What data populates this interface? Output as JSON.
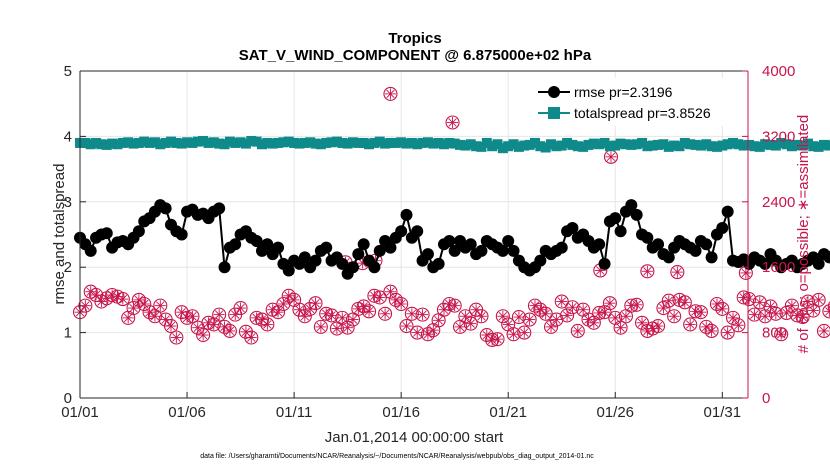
{
  "chart_data": {
    "type": "line",
    "title": "Tropics",
    "subtitle": "SAT_V_WIND_COMPONENT @ 6.875000e+02 hPa",
    "xlabel": "Jan.01,2014 00:00:00 start",
    "ylabel": "rmse and totalspread",
    "y2label": "# of obs: o=possible; ∗=assimilated",
    "xlim": [
      0,
      31.2
    ],
    "ylim": [
      0,
      5
    ],
    "y2lim": [
      0,
      4000
    ],
    "xticks": [
      0,
      5,
      10,
      15,
      20,
      25,
      30
    ],
    "xticklabels": [
      "01/01",
      "01/06",
      "01/11",
      "01/16",
      "01/21",
      "01/26",
      "01/31"
    ],
    "yticks": [
      "0",
      "1",
      "2",
      "3",
      "4",
      "5"
    ],
    "y2ticks": [
      "0",
      "800",
      "1600",
      "2400",
      "3200",
      "4000"
    ],
    "legend_position": "top-right",
    "step_days": 0.25,
    "series": [
      {
        "name": "rmse pr=2.3196",
        "axis": "left",
        "color": "#000000",
        "marker": "circle",
        "values": [
          2.45,
          2.35,
          2.25,
          2.45,
          2.5,
          2.52,
          2.3,
          2.38,
          2.4,
          2.35,
          2.45,
          2.55,
          2.7,
          2.75,
          2.85,
          2.95,
          2.9,
          2.65,
          2.55,
          2.5,
          2.85,
          2.88,
          2.8,
          2.82,
          2.75,
          2.85,
          2.9,
          2.0,
          2.3,
          2.35,
          2.5,
          2.55,
          2.45,
          2.4,
          2.25,
          2.35,
          2.2,
          2.3,
          2.05,
          1.95,
          2.1,
          2.05,
          2.15,
          2.0,
          2.1,
          2.25,
          2.3,
          2.1,
          2.15,
          2.05,
          1.9,
          2.0,
          2.2,
          2.35,
          2.1,
          2.0,
          2.25,
          2.4,
          2.3,
          2.45,
          2.55,
          2.8,
          2.45,
          2.55,
          2.1,
          2.2,
          2.0,
          2.05,
          2.35,
          2.4,
          2.25,
          2.4,
          2.3,
          2.35,
          2.2,
          2.25,
          2.4,
          2.35,
          2.3,
          2.25,
          2.4,
          2.25,
          2.1,
          2.0,
          1.95,
          2.0,
          2.1,
          2.25,
          2.2,
          2.25,
          2.3,
          2.55,
          2.6,
          2.45,
          2.5,
          2.4,
          2.3,
          2.35,
          2.05,
          2.7,
          2.75,
          2.55,
          2.85,
          2.95,
          2.8,
          2.5,
          2.45,
          2.3,
          2.35,
          2.2,
          2.15,
          2.3,
          2.4,
          2.35,
          2.3,
          2.25,
          2.4,
          2.35,
          2.15,
          2.5,
          2.6,
          2.85,
          2.1,
          2.08,
          2.12,
          2.05,
          2.15,
          2.1,
          2.05,
          2.2,
          2.1,
          2.0,
          2.05,
          2.1,
          2.0,
          2.05,
          2.1,
          2.15,
          2.05,
          2.2,
          2.15,
          2.2,
          2.25,
          2.25,
          2.28,
          2.3,
          2.2,
          2.1,
          2.2,
          2.4,
          2.35,
          2.3,
          2.2,
          2.1,
          2.1,
          2.2,
          2.15,
          1.95
        ]
      },
      {
        "name": "totalspread pr=3.8526",
        "axis": "left",
        "color": "#0f8a8a",
        "marker": "square",
        "values": [
          3.9,
          3.9,
          3.88,
          3.9,
          3.88,
          3.87,
          3.89,
          3.88,
          3.9,
          3.91,
          3.89,
          3.9,
          3.92,
          3.9,
          3.91,
          3.88,
          3.9,
          3.92,
          3.9,
          3.89,
          3.91,
          3.9,
          3.92,
          3.93,
          3.9,
          3.91,
          3.89,
          3.88,
          3.92,
          3.9,
          3.91,
          3.89,
          3.93,
          3.92,
          3.88,
          3.9,
          3.89,
          3.9,
          3.91,
          3.92,
          3.9,
          3.89,
          3.9,
          3.91,
          3.89,
          3.88,
          3.9,
          3.91,
          3.92,
          3.9,
          3.89,
          3.91,
          3.9,
          3.9,
          3.88,
          3.9,
          3.92,
          3.89,
          3.9,
          3.9,
          3.91,
          3.89,
          3.9,
          3.88,
          3.9,
          3.91,
          3.89,
          3.9,
          3.88,
          3.9,
          3.89,
          3.87,
          3.86,
          3.88,
          3.85,
          3.84,
          3.9,
          3.85,
          3.88,
          3.82,
          3.85,
          3.88,
          3.84,
          3.86,
          3.87,
          3.9,
          3.85,
          3.83,
          3.88,
          3.85,
          3.86,
          3.9,
          3.87,
          3.85,
          3.84,
          3.87,
          3.89,
          3.88,
          3.9,
          3.85,
          3.86,
          3.89,
          3.88,
          3.87,
          3.88,
          3.9,
          3.85,
          3.86,
          3.87,
          3.88,
          3.84,
          3.86,
          3.85,
          3.9,
          3.88,
          3.87,
          3.86,
          3.88,
          3.85,
          3.84,
          3.86,
          3.88,
          3.9,
          3.88,
          3.86,
          3.87,
          3.85,
          3.84,
          3.88,
          3.87,
          3.86,
          3.9,
          3.88,
          3.85,
          3.87,
          3.86,
          3.89,
          3.85,
          3.84,
          3.87,
          3.86,
          3.88,
          3.87,
          3.86,
          3.85,
          3.87,
          3.86,
          3.88,
          3.86,
          3.87,
          3.86,
          3.85,
          3.87,
          3.88,
          3.88,
          3.9
        ]
      },
      {
        "name": "# of obs possible",
        "axis": "right",
        "color": "#c7154b",
        "marker": "open-circle",
        "values": [
          1050,
          1130,
          1300,
          1260,
          1180,
          1220,
          1260,
          1240,
          1210,
          980,
          1100,
          1200,
          1150,
          1050,
          1000,
          1130,
          960,
          880,
          740,
          1050,
          980,
          1000,
          860,
          770,
          920,
          900,
          1020,
          870,
          820,
          1020,
          1100,
          810,
          740,
          980,
          960,
          900,
          1080,
          1050,
          1150,
          1250,
          1200,
          1080,
          1000,
          1090,
          1160,
          870,
          1030,
          1010,
          850,
          980,
          860,
          960,
          1090,
          1120,
          1060,
          1250,
          1230,
          1030,
          1300,
          1200,
          1150,
          880,
          1030,
          800,
          1020,
          780,
          830,
          950,
          1080,
          1150,
          1130,
          870,
          1000,
          910,
          1080,
          1000,
          770,
          710,
          720,
          1000,
          900,
          780,
          990,
          800,
          960,
          1130,
          1080,
          1030,
          870,
          960,
          1180,
          1010,
          1110,
          820,
          1080,
          960,
          920,
          1040,
          1050,
          1160,
          980,
          860,
          1000,
          1130,
          1140,
          920,
          820,
          850,
          880,
          1100,
          1190,
          1000,
          1200,
          1170,
          900,
          1060,
          1050,
          870,
          820,
          1150,
          1090,
          800,
          980,
          890,
          1230,
          1210,
          1020,
          1170,
          1000,
          1120,
          1030,
          780,
          1040,
          1130,
          1010,
          990,
          1180,
          1070,
          1200,
          820,
          1060,
          1120,
          1020,
          1040,
          1110,
          1050,
          1160,
          1090,
          1110,
          830,
          980,
          1040,
          1140,
          1020,
          1080,
          1130,
          1250,
          0
        ]
      },
      {
        "name": "# of obs assimilated",
        "axis": "right",
        "color": "#c7154b",
        "marker": "asterisk",
        "values": [
          1050,
          1130,
          1300,
          1260,
          1180,
          1220,
          1260,
          1240,
          1210,
          980,
          1100,
          1200,
          1150,
          1050,
          1000,
          1130,
          960,
          880,
          740,
          1050,
          980,
          1000,
          860,
          770,
          920,
          900,
          1020,
          870,
          820,
          1020,
          1100,
          810,
          740,
          980,
          960,
          900,
          1080,
          1050,
          1150,
          1250,
          1200,
          1080,
          1000,
          1090,
          1160,
          870,
          1030,
          1010,
          850,
          980,
          860,
          960,
          1090,
          1120,
          1060,
          1250,
          1230,
          1030,
          1300,
          1200,
          1150,
          880,
          1030,
          800,
          1020,
          780,
          830,
          950,
          1080,
          1150,
          1130,
          870,
          1000,
          910,
          1080,
          1000,
          770,
          710,
          720,
          1000,
          900,
          780,
          990,
          800,
          960,
          1130,
          1080,
          1030,
          870,
          960,
          1180,
          1010,
          1110,
          820,
          1080,
          960,
          920,
          1040,
          1050,
          1160,
          980,
          860,
          1000,
          1130,
          1140,
          920,
          820,
          850,
          880,
          1100,
          1190,
          1000,
          1200,
          1170,
          900,
          1060,
          1050,
          870,
          820,
          1150,
          1090,
          800,
          980,
          890,
          1230,
          1210,
          1020,
          1170,
          1000,
          1120,
          1030,
          780,
          1040,
          1130,
          1010,
          990,
          1180,
          1070,
          1200,
          820,
          1060,
          1120,
          1020,
          1040,
          1110,
          1050,
          1160,
          1090,
          1110,
          830,
          980,
          1040,
          1140,
          1020,
          1080,
          1130,
          1250,
          0
        ]
      }
    ],
    "outliers": [
      {
        "x": 14.5,
        "y2": 3720,
        "label": "obs"
      },
      {
        "x": 17.4,
        "y2": 3370,
        "label": "obs"
      },
      {
        "x": 24.8,
        "y2": 2950,
        "label": "obs"
      },
      {
        "x": 13.8,
        "y2": 1680,
        "label": "obs"
      },
      {
        "x": 24.3,
        "y2": 1560,
        "label": "obs"
      },
      {
        "x": 13.2,
        "y2": 1650,
        "label": "obs"
      },
      {
        "x": 31.1,
        "y2": 1530,
        "label": "obs"
      },
      {
        "x": 12.4,
        "y2": 1660,
        "label": "obs"
      },
      {
        "x": 26.5,
        "y2": 1550,
        "label": "obs"
      },
      {
        "x": 27.9,
        "y2": 1540,
        "label": "obs"
      }
    ]
  },
  "footer": "data file: /Users/gharamti/Documents/NCAR/Reanalysis/~/Documents/NCAR/Reanalysis/webpub/obs_diag_output_2014-01.nc",
  "legend": {
    "rmse_label": "rmse pr=2.3196",
    "spread_label": "totalspread pr=3.8526"
  }
}
